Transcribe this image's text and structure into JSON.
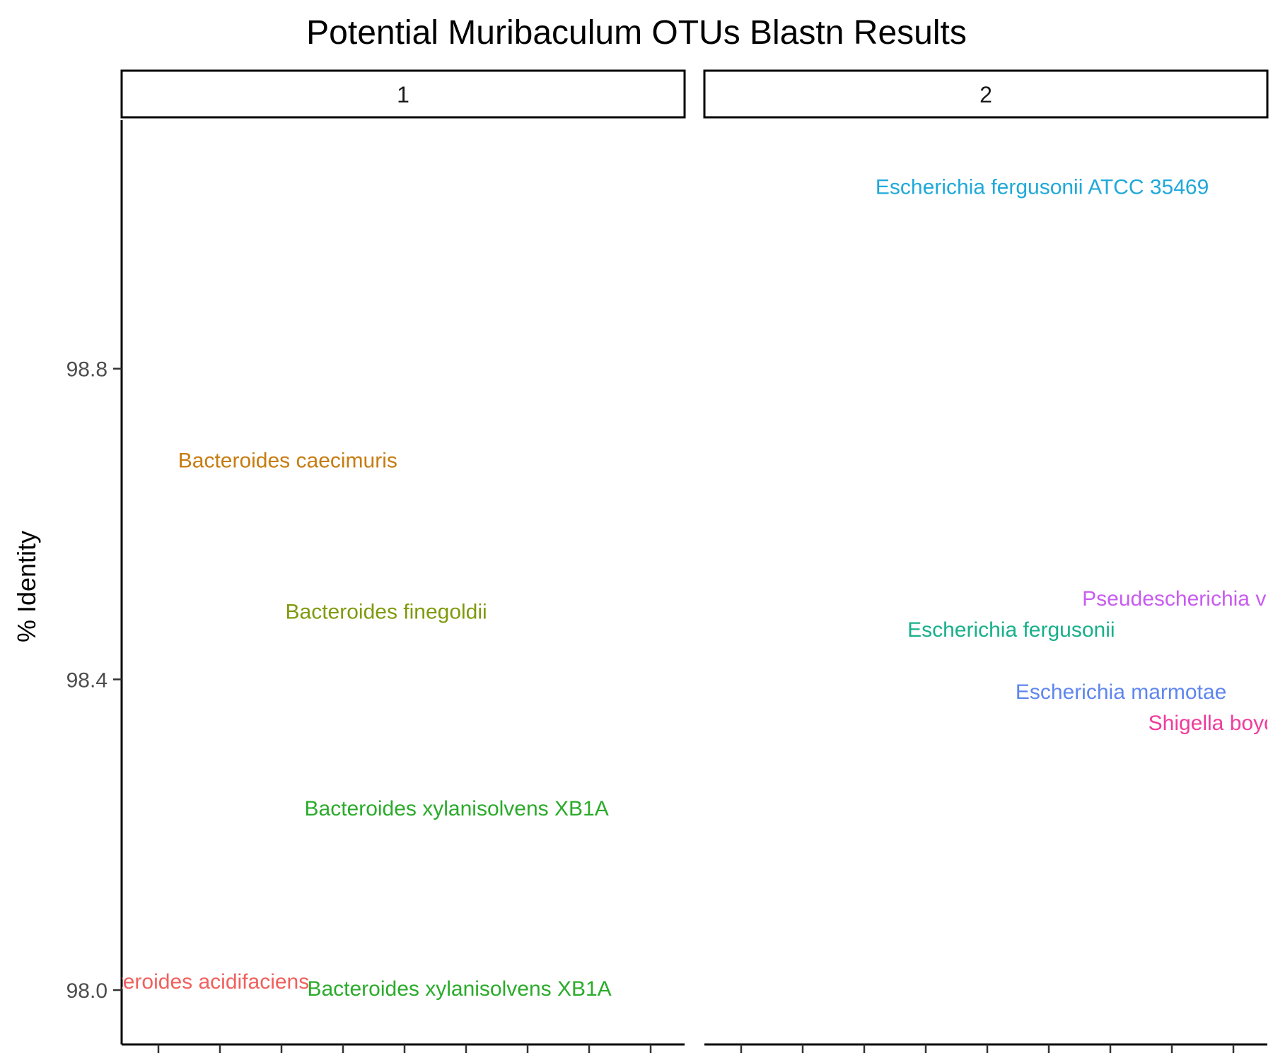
{
  "chart_data": {
    "type": "scatter",
    "title": "Potential Muribaculum OTUs Blastn Results",
    "ylabel": "% Identity",
    "xlabel": "",
    "ylim": [
      97.93,
      99.12
    ],
    "yticks": [
      98.0,
      98.4,
      98.8
    ],
    "ytick_labels": [
      "98.0",
      "98.4",
      "98.8"
    ],
    "grid": false,
    "legend": "none",
    "facets": [
      {
        "label": "1",
        "points": [
          {
            "label": "Bacteroides caecimuris",
            "x": 0.295,
            "y": 98.683,
            "color": "#c77c11"
          },
          {
            "label": "Bacteroides finegoldii",
            "x": 0.47,
            "y": 98.488,
            "color": "#7f9a0c"
          },
          {
            "label": "Bacteroides xylanisolvens XB1A",
            "x": 0.595,
            "y": 98.235,
            "color": "#2bab2b"
          },
          {
            "label": "Bacteroides acidifaciens",
            "x": 0.13,
            "y": 98.012,
            "color": "#f0605e"
          },
          {
            "label": "Bacteroides xylanisolvens XB1A",
            "x": 0.6,
            "y": 98.003,
            "color": "#2bab2b"
          }
        ]
      },
      {
        "label": "2",
        "points": [
          {
            "label": "Escherichia fergusonii ATCC 35469",
            "x": 0.6,
            "y": 99.035,
            "color": "#1fa9d9"
          },
          {
            "label": "Pseudescherichia vulneris",
            "x": 0.89,
            "y": 98.505,
            "color": "#c85cf0"
          },
          {
            "label": "Escherichia fergusonii",
            "x": 0.545,
            "y": 98.465,
            "color": "#18b08a"
          },
          {
            "label": "Escherichia marmotae",
            "x": 0.74,
            "y": 98.385,
            "color": "#5f86ee"
          },
          {
            "label": "Shigella boydii",
            "x": 0.91,
            "y": 98.345,
            "color": "#f03c9c"
          }
        ]
      }
    ]
  }
}
